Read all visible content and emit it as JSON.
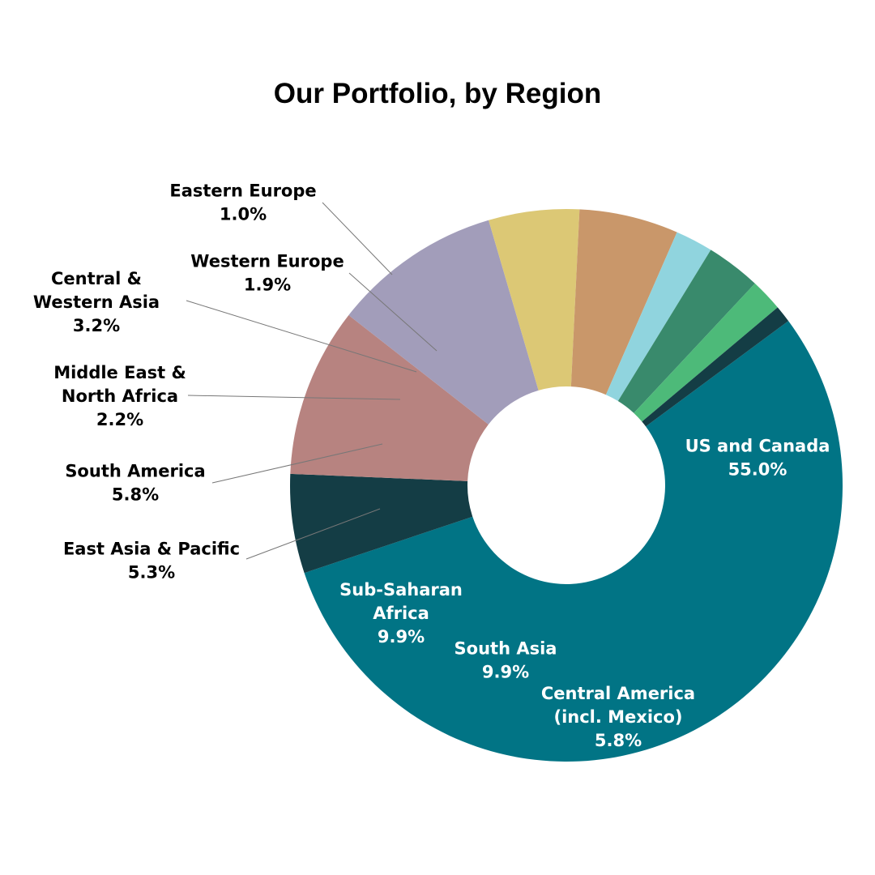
{
  "chart_data": {
    "type": "donut",
    "title": "Our Portfolio, by Region",
    "unit": "%",
    "slices": [
      {
        "name": "US and Canada",
        "value": 55.0,
        "display": "55.0%",
        "color": "#017485"
      },
      {
        "name": "Central America (incl. Mexico)",
        "name_lines": [
          "Central America",
          "(incl. Mexico)"
        ],
        "value": 5.8,
        "display": "5.8%",
        "color": "#143D45"
      },
      {
        "name": "South Asia",
        "name_lines": [
          "South Asia"
        ],
        "value": 9.9,
        "display": "9.9%",
        "color": "#B78380"
      },
      {
        "name": "Sub-Saharan Africa",
        "name_lines": [
          "Sub-Saharan",
          "Africa"
        ],
        "value": 9.9,
        "display": "9.9%",
        "color": "#A29DBA"
      },
      {
        "name": "East Asia & Pacific",
        "name_lines": [
          "East Asia & Pacific"
        ],
        "value": 5.3,
        "display": "5.3%",
        "color": "#DCC875"
      },
      {
        "name": "South America",
        "name_lines": [
          "South America"
        ],
        "value": 5.8,
        "display": "5.8%",
        "color": "#C9976A"
      },
      {
        "name": "Middle East & North Africa",
        "name_lines": [
          "Middle East &",
          "North Africa"
        ],
        "value": 2.2,
        "display": "2.2%",
        "color": "#90D4DE"
      },
      {
        "name": "Central & Western Asia",
        "name_lines": [
          "Central &",
          "Western Asia"
        ],
        "value": 3.2,
        "display": "3.2%",
        "color": "#398A6C"
      },
      {
        "name": "Western Europe",
        "name_lines": [
          "Western Europe"
        ],
        "value": 1.9,
        "display": "1.9%",
        "color": "#4DBA79"
      },
      {
        "name": "Eastern Europe",
        "name_lines": [
          "Eastern Europe"
        ],
        "value": 1.0,
        "display": "1.0%",
        "color": "#143D45"
      }
    ]
  }
}
